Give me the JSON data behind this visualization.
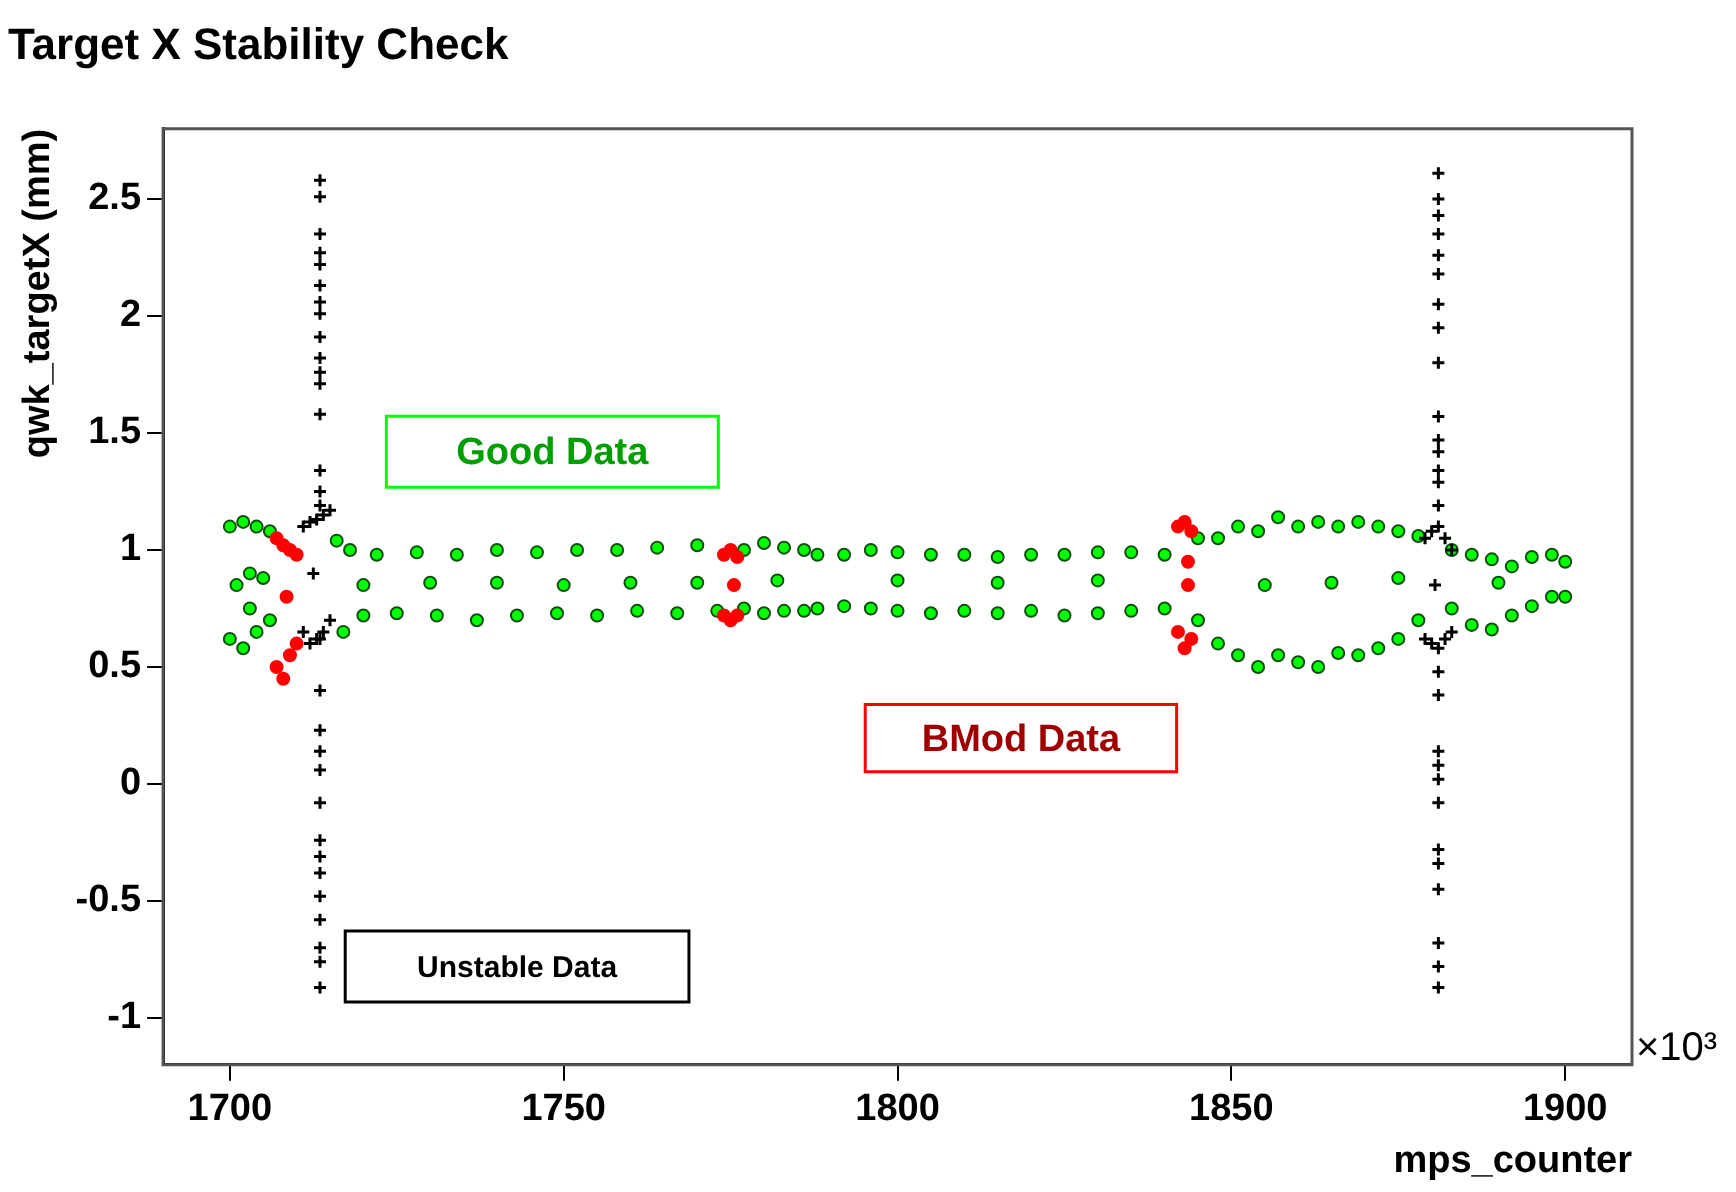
{
  "chart_data": {
    "type": "scatter",
    "title": "Target X Stability Check",
    "xlabel": "mps_counter",
    "ylabel": "qwk_targetX (mm)",
    "annotations": [
      "×10³"
    ],
    "xlim": [
      1690,
      1910
    ],
    "xticks": [
      1700,
      1750,
      1800,
      1850,
      1900
    ],
    "ylim": [
      -1.2,
      2.8
    ],
    "yticks": [
      -1,
      -0.5,
      0,
      0.5,
      1,
      1.5,
      2,
      2.5
    ],
    "marker": "circle",
    "series": [
      {
        "name": "Good Data",
        "color": "#00ff00",
        "x": [
          1700,
          1700,
          1701,
          1702,
          1702,
          1703,
          1704,
          1704,
          1705,
          1706,
          1706,
          1703,
          1716,
          1717,
          1718,
          1720,
          1722,
          1725,
          1728,
          1731,
          1734,
          1737,
          1740,
          1743,
          1746,
          1749,
          1752,
          1755,
          1758,
          1761,
          1764,
          1767,
          1770,
          1773,
          1720,
          1730,
          1740,
          1750,
          1760,
          1770,
          1777,
          1777,
          1780,
          1780,
          1783,
          1783,
          1786,
          1786,
          1788,
          1788,
          1782,
          1792,
          1792,
          1796,
          1796,
          1800,
          1800,
          1805,
          1805,
          1810,
          1810,
          1815,
          1815,
          1820,
          1820,
          1825,
          1825,
          1830,
          1830,
          1835,
          1835,
          1840,
          1840,
          1800,
          1815,
          1830,
          1845,
          1845,
          1848,
          1848,
          1851,
          1851,
          1854,
          1854,
          1857,
          1857,
          1860,
          1860,
          1863,
          1863,
          1866,
          1866,
          1869,
          1869,
          1872,
          1872,
          1875,
          1875,
          1878,
          1878,
          1855,
          1865,
          1875,
          1883,
          1883,
          1886,
          1886,
          1889,
          1889,
          1892,
          1892,
          1895,
          1895,
          1898,
          1898,
          1900,
          1900,
          1890
        ],
        "values": [
          1.1,
          0.62,
          0.85,
          1.12,
          0.58,
          0.9,
          1.1,
          0.65,
          0.88,
          1.08,
          0.7,
          0.75,
          1.04,
          0.65,
          1.0,
          0.72,
          0.98,
          0.73,
          0.99,
          0.72,
          0.98,
          0.7,
          1.0,
          0.72,
          0.99,
          0.73,
          1.0,
          0.72,
          1.0,
          0.74,
          1.01,
          0.73,
          1.02,
          0.74,
          0.85,
          0.86,
          0.86,
          0.85,
          0.86,
          0.86,
          1.0,
          0.75,
          1.03,
          0.73,
          1.01,
          0.74,
          1.0,
          0.74,
          0.98,
          0.75,
          0.87,
          0.98,
          0.76,
          1.0,
          0.75,
          0.99,
          0.74,
          0.98,
          0.73,
          0.98,
          0.74,
          0.97,
          0.73,
          0.98,
          0.74,
          0.98,
          0.72,
          0.99,
          0.73,
          0.99,
          0.74,
          0.98,
          0.75,
          0.87,
          0.86,
          0.87,
          1.05,
          0.7,
          1.05,
          0.6,
          1.1,
          0.55,
          1.08,
          0.5,
          1.14,
          0.55,
          1.1,
          0.52,
          1.12,
          0.5,
          1.1,
          0.56,
          1.12,
          0.55,
          1.1,
          0.58,
          1.08,
          0.62,
          1.06,
          0.7,
          0.85,
          0.86,
          0.88,
          1.0,
          0.75,
          0.98,
          0.68,
          0.96,
          0.66,
          0.93,
          0.72,
          0.97,
          0.76,
          0.98,
          0.8,
          0.95,
          0.8,
          0.86
        ]
      },
      {
        "name": "BMod Data",
        "color": "#ff0000",
        "x": [
          1707,
          1707,
          1708,
          1708,
          1709,
          1709,
          1710,
          1710,
          1708.5,
          1774,
          1774,
          1775,
          1775,
          1776,
          1776,
          1775.5,
          1842,
          1842,
          1843,
          1843,
          1844,
          1844,
          1843.5,
          1843.5
        ],
        "values": [
          1.05,
          0.5,
          1.02,
          0.45,
          1.0,
          0.55,
          0.98,
          0.6,
          0.8,
          0.98,
          0.72,
          1.0,
          0.7,
          0.97,
          0.72,
          0.85,
          1.1,
          0.65,
          1.12,
          0.58,
          1.08,
          0.62,
          0.85,
          0.95
        ]
      },
      {
        "name": "Unstable Data",
        "color": "#000000",
        "marker": "cross",
        "x": [
          1711,
          1711,
          1712,
          1712,
          1713,
          1713,
          1714,
          1714,
          1715,
          1715,
          1712.5,
          1713.5,
          1713.5,
          1713.5,
          1713.5,
          1713.5,
          1713.5,
          1713.5,
          1713.5,
          1713.5,
          1713.5,
          1713.5,
          1713.5,
          1713.5,
          1713.5,
          1713.5,
          1713.5,
          1713.5,
          1713.5,
          1713.5,
          1713.5,
          1713.5,
          1713.5,
          1713.5,
          1713.5,
          1713.5,
          1713.5,
          1713.5,
          1713.5,
          1713.5,
          1713.5,
          1879,
          1879,
          1880,
          1880,
          1881,
          1881,
          1882,
          1882,
          1883,
          1883,
          1880.5,
          1881,
          1881,
          1881,
          1881,
          1881,
          1881,
          1881,
          1881,
          1881,
          1881,
          1881,
          1881,
          1881,
          1881,
          1881,
          1881,
          1881,
          1881,
          1881,
          1881,
          1881,
          1881,
          1881,
          1881,
          1881,
          1881,
          1881
        ],
        "values": [
          1.1,
          0.65,
          1.12,
          0.6,
          1.13,
          0.62,
          1.15,
          0.65,
          1.17,
          0.7,
          0.9,
          2.58,
          2.51,
          2.35,
          2.27,
          2.22,
          2.13,
          2.06,
          2.01,
          1.91,
          1.82,
          1.76,
          1.71,
          1.58,
          1.34,
          1.25,
          1.19,
          0.62,
          0.4,
          0.23,
          0.14,
          0.06,
          -0.08,
          -0.24,
          -0.31,
          -0.38,
          -0.48,
          -0.58,
          -0.7,
          -0.76,
          -0.87,
          1.05,
          0.62,
          1.08,
          0.6,
          1.1,
          0.58,
          1.05,
          0.62,
          1.0,
          0.65,
          0.85,
          2.61,
          2.5,
          2.43,
          2.35,
          2.26,
          2.18,
          2.05,
          1.95,
          1.8,
          1.57,
          1.47,
          1.42,
          1.34,
          1.29,
          1.19,
          0.48,
          0.38,
          0.14,
          0.08,
          0.02,
          -0.08,
          -0.28,
          -0.34,
          -0.45,
          -0.68,
          -0.78,
          -0.87
        ]
      }
    ]
  }
}
